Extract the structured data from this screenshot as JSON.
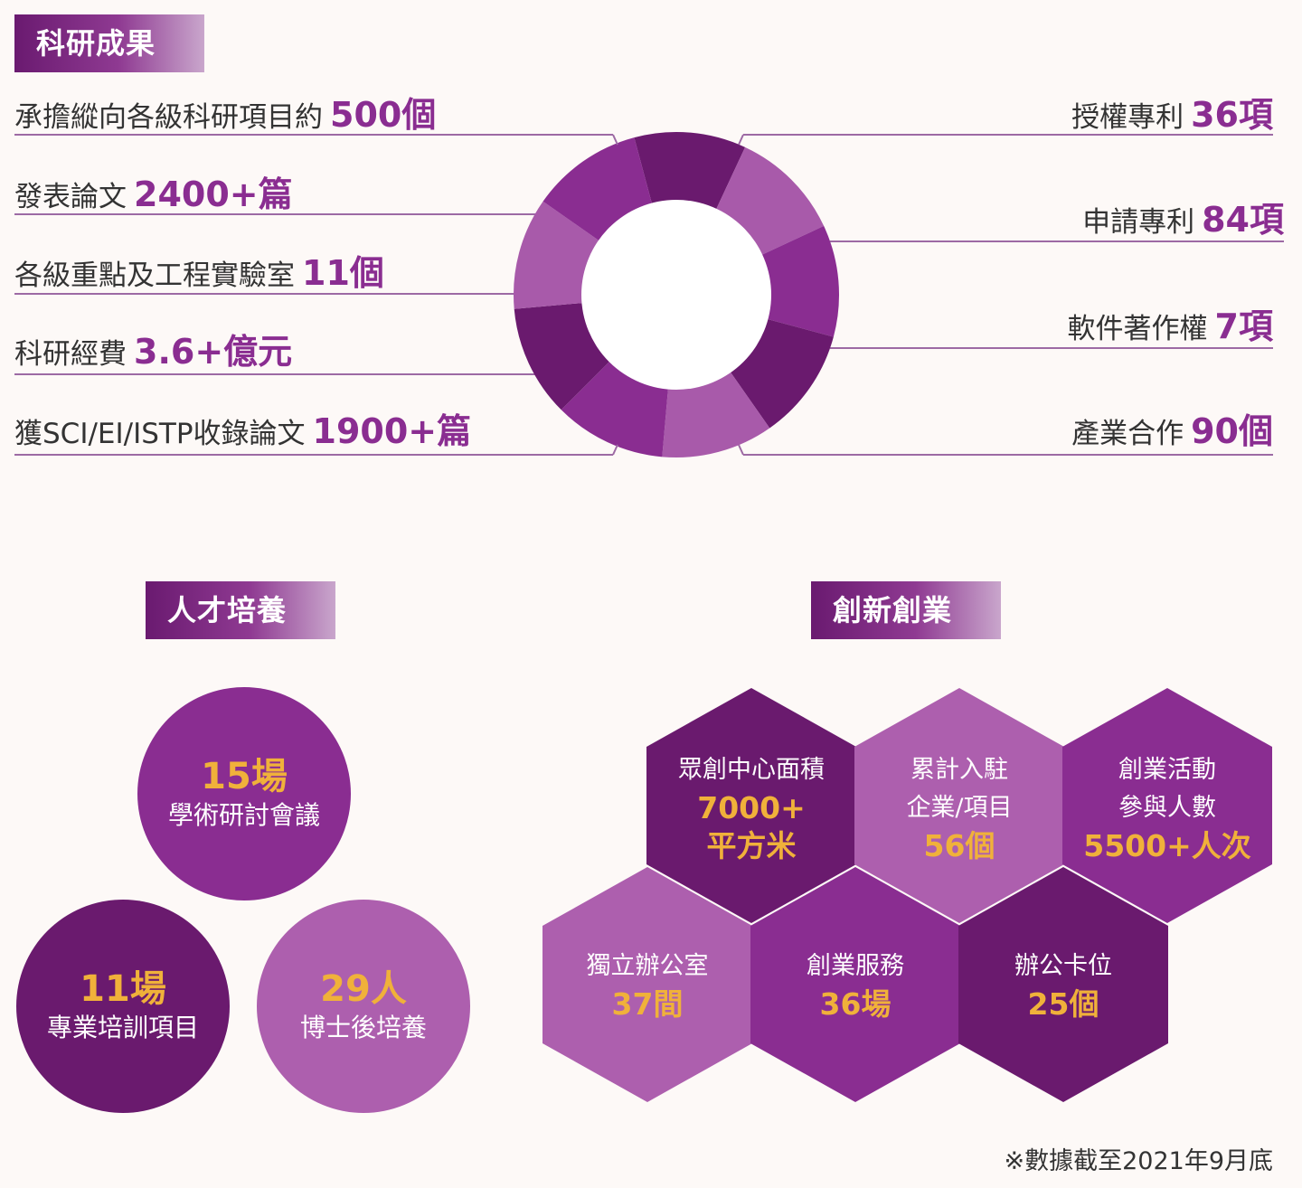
{
  "research": {
    "title": "科研成果",
    "left": [
      {
        "label": "承擔縱向各級科研項目約",
        "value": "500個"
      },
      {
        "label": "發表論文",
        "value": "2400+篇"
      },
      {
        "label": "各級重點及工程實驗室",
        "value": "11個"
      },
      {
        "label": "科研經費",
        "value": "3.6+億元"
      },
      {
        "label": "獲SCI/EI/ISTP收錄論文",
        "value": "1900+篇"
      }
    ],
    "right": [
      {
        "label": "授權專利",
        "value": "36項"
      },
      {
        "label": "申請專利",
        "value": "84項"
      },
      {
        "label": "軟件著作權",
        "value": "7項"
      },
      {
        "label": "產業合作",
        "value": "90個"
      }
    ],
    "ring_colors": [
      "#6a1a6e",
      "#a85aaa",
      "#8a2d91",
      "#6a1a6e",
      "#a85aaa",
      "#8a2d91",
      "#6a1a6e",
      "#a85aaa",
      "#8a2d91"
    ]
  },
  "talent": {
    "title": "人才培養",
    "bubbles": [
      {
        "number": "15場",
        "label": "學術研討會議",
        "color": "#8a2d91"
      },
      {
        "number": "11場",
        "label": "專業培訓項目",
        "color": "#6a1a6e"
      },
      {
        "number": "29人",
        "label": "博士後培養",
        "color": "#ad5fae"
      }
    ]
  },
  "innovation": {
    "title": "創新創業",
    "hexes": [
      {
        "lines": [
          "眾創中心面積"
        ],
        "values": [
          "7000+",
          "平方米"
        ],
        "color": "#6a1a6e"
      },
      {
        "lines": [
          "累計入駐",
          "企業/項目"
        ],
        "values": [
          "56個"
        ],
        "color": "#ad5fae"
      },
      {
        "lines": [
          "創業活動",
          "參與人數"
        ],
        "values": [
          "5500+人次"
        ],
        "color": "#8a2d91"
      },
      {
        "lines": [
          "獨立辦公室"
        ],
        "values": [
          "37間"
        ],
        "color": "#ad5fae"
      },
      {
        "lines": [
          "創業服務"
        ],
        "values": [
          "36場"
        ],
        "color": "#8a2d91"
      },
      {
        "lines": [
          "辦公卡位"
        ],
        "values": [
          "25個"
        ],
        "color": "#6a1a6e"
      }
    ]
  },
  "footnote": "※數據截至2021年9月底"
}
